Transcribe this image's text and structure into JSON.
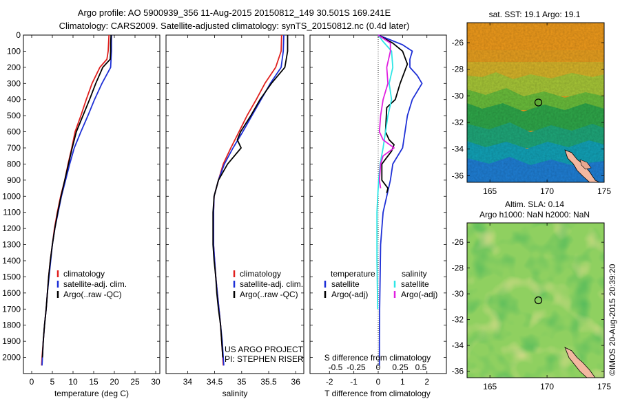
{
  "header": {
    "line1": "Argo profile: AO 5900939_356 11-Aug-2015 20150812_149 30.501S 169.241E",
    "line2": "Climatology: CARS2009. Satellite-adjusted climatology: synTS_20150812.nc (0.4d later)"
  },
  "colors": {
    "climatology": "#e0201e",
    "satellite": "#1d2fd6",
    "argo": "#000000",
    "satellite_s": "#2ee6e6",
    "argo_s": "#e020e0"
  },
  "chart_data": [
    {
      "id": "temperature",
      "type": "line",
      "xlabel": "temperature (deg C)",
      "ylabel": "",
      "xlim": [
        -2,
        31
      ],
      "ylim": [
        2100,
        0
      ],
      "xticks": [
        0,
        5,
        10,
        15,
        20,
        25,
        30
      ],
      "yticks": [
        0,
        100,
        200,
        300,
        400,
        500,
        600,
        700,
        800,
        900,
        1000,
        1100,
        1200,
        1300,
        1400,
        1500,
        1600,
        1700,
        1800,
        1900,
        2000
      ],
      "legend": {
        "placement": "lower-center",
        "entries": [
          "climatology",
          "satellite-adj. clim.",
          "Argo(..raw -QC)"
        ]
      },
      "series": [
        {
          "name": "climatology",
          "color_key": "climatology",
          "points": [
            [
              18.7,
              0
            ],
            [
              18.6,
              50
            ],
            [
              18.5,
              100
            ],
            [
              18.2,
              150
            ],
            [
              16.5,
              200
            ],
            [
              14.6,
              300
            ],
            [
              13.2,
              400
            ],
            [
              11.9,
              500
            ],
            [
              10.5,
              600
            ],
            [
              9.7,
              700
            ],
            [
              8.8,
              800
            ],
            [
              8.0,
              900
            ],
            [
              7.0,
              1000
            ],
            [
              6.2,
              1100
            ],
            [
              5.5,
              1200
            ],
            [
              5.0,
              1300
            ],
            [
              4.5,
              1400
            ],
            [
              4.1,
              1500
            ],
            [
              3.8,
              1600
            ],
            [
              3.5,
              1700
            ],
            [
              3.1,
              1800
            ],
            [
              2.8,
              1900
            ],
            [
              2.5,
              2000
            ],
            [
              2.4,
              2050
            ]
          ]
        },
        {
          "name": "satellite-adj. clim.",
          "color_key": "satellite",
          "points": [
            [
              19.3,
              0
            ],
            [
              19.3,
              50
            ],
            [
              19.3,
              100
            ],
            [
              19.2,
              150
            ],
            [
              19.1,
              200
            ],
            [
              17.0,
              300
            ],
            [
              15.2,
              400
            ],
            [
              13.6,
              500
            ],
            [
              11.9,
              600
            ],
            [
              10.3,
              700
            ],
            [
              9.2,
              800
            ],
            [
              8.2,
              900
            ],
            [
              7.2,
              1000
            ],
            [
              6.4,
              1100
            ],
            [
              5.6,
              1200
            ],
            [
              5.0,
              1300
            ],
            [
              4.6,
              1400
            ],
            [
              4.2,
              1500
            ],
            [
              3.8,
              1600
            ],
            [
              3.5,
              1700
            ],
            [
              3.1,
              1800
            ],
            [
              2.8,
              1900
            ],
            [
              2.6,
              2000
            ],
            [
              2.5,
              2050
            ]
          ]
        },
        {
          "name": "Argo(..raw -QC)",
          "color_key": "argo",
          "points": [
            [
              19.2,
              0
            ],
            [
              19.1,
              50
            ],
            [
              19.1,
              100
            ],
            [
              19.0,
              150
            ],
            [
              17.2,
              200
            ],
            [
              15.5,
              300
            ],
            [
              14.0,
              400
            ],
            [
              12.4,
              500
            ],
            [
              10.8,
              600
            ],
            [
              9.8,
              700
            ],
            [
              8.9,
              800
            ],
            [
              8.0,
              900
            ],
            [
              7.1,
              1000
            ],
            [
              6.3,
              1100
            ],
            [
              5.6,
              1200
            ],
            [
              5.0,
              1300
            ],
            [
              4.5,
              1400
            ],
            [
              4.1,
              1500
            ],
            [
              3.8,
              1600
            ],
            [
              3.5,
              1700
            ],
            [
              3.1,
              1800
            ],
            [
              2.8,
              1900
            ],
            [
              2.6,
              2000
            ]
          ]
        }
      ]
    },
    {
      "id": "salinity",
      "type": "line",
      "xlabel": "salinity",
      "ylabel": "",
      "xlim": [
        33.6,
        36.15
      ],
      "ylim": [
        2100,
        0
      ],
      "xticks": [
        34,
        34.5,
        35,
        35.5,
        36
      ],
      "legend": {
        "placement": "lower-center",
        "entries": [
          "climatology",
          "satellite-adj. clim.",
          "Argo(..raw -QC)"
        ]
      },
      "annotations": [
        "US ARGO PROJECT",
        "PI: STEPHEN RISER"
      ],
      "series": [
        {
          "name": "climatology",
          "color_key": "climatology",
          "points": [
            [
              35.74,
              0
            ],
            [
              35.73,
              100
            ],
            [
              35.63,
              200
            ],
            [
              35.43,
              300
            ],
            [
              35.27,
              400
            ],
            [
              35.1,
              500
            ],
            [
              34.95,
              600
            ],
            [
              34.8,
              700
            ],
            [
              34.66,
              800
            ],
            [
              34.57,
              900
            ],
            [
              34.49,
              1000
            ],
            [
              34.48,
              1100
            ],
            [
              34.48,
              1200
            ],
            [
              34.48,
              1300
            ],
            [
              34.5,
              1400
            ],
            [
              34.52,
              1500
            ],
            [
              34.55,
              1600
            ],
            [
              34.58,
              1700
            ],
            [
              34.61,
              1800
            ],
            [
              34.63,
              1900
            ],
            [
              34.65,
              2000
            ],
            [
              34.66,
              2050
            ]
          ]
        },
        {
          "name": "satellite-adj. clim.",
          "color_key": "satellite",
          "points": [
            [
              35.78,
              0
            ],
            [
              35.77,
              100
            ],
            [
              35.73,
              200
            ],
            [
              35.53,
              300
            ],
            [
              35.36,
              400
            ],
            [
              35.19,
              500
            ],
            [
              35.02,
              600
            ],
            [
              34.84,
              700
            ],
            [
              34.68,
              800
            ],
            [
              34.57,
              900
            ],
            [
              34.49,
              1000
            ],
            [
              34.48,
              1100
            ],
            [
              34.48,
              1200
            ],
            [
              34.48,
              1300
            ],
            [
              34.5,
              1400
            ],
            [
              34.52,
              1500
            ],
            [
              34.55,
              1600
            ],
            [
              34.58,
              1700
            ],
            [
              34.61,
              1800
            ],
            [
              34.64,
              1900
            ],
            [
              34.66,
              2000
            ],
            [
              34.67,
              2050
            ]
          ]
        },
        {
          "name": "Argo(..raw -QC)",
          "color_key": "argo",
          "points": [
            [
              35.85,
              0
            ],
            [
              35.85,
              100
            ],
            [
              35.8,
              200
            ],
            [
              35.55,
              300
            ],
            [
              35.34,
              400
            ],
            [
              35.17,
              500
            ],
            [
              34.98,
              600
            ],
            [
              34.92,
              650
            ],
            [
              34.99,
              700
            ],
            [
              34.74,
              800
            ],
            [
              34.57,
              900
            ],
            [
              34.49,
              1000
            ],
            [
              34.47,
              1100
            ],
            [
              34.47,
              1200
            ],
            [
              34.47,
              1300
            ],
            [
              34.49,
              1400
            ],
            [
              34.52,
              1500
            ],
            [
              34.54,
              1600
            ],
            [
              34.57,
              1700
            ],
            [
              34.61,
              1800
            ],
            [
              34.63,
              1900
            ],
            [
              34.65,
              2000
            ]
          ]
        }
      ]
    },
    {
      "id": "difference",
      "type": "line",
      "xlabel": "T difference from climatology",
      "xlabel_top": "S difference from climatology",
      "xlim": [
        -2.8,
        2.8
      ],
      "ylim": [
        2100,
        0
      ],
      "xticks": [
        -2,
        -1,
        0,
        1,
        2
      ],
      "xticks_s": [
        "-0.5",
        "-0.25",
        "0",
        "0.25",
        "0.5"
      ],
      "legend": {
        "placement": "lower-center",
        "temperature_title": "temperature",
        "salinity_title": "salinity",
        "entries": [
          "satellite",
          "Argo(-adj)",
          "satellite",
          "Argo(-adj)"
        ]
      },
      "series": [
        {
          "name": "satellite",
          "group": "temperature",
          "color_key": "satellite",
          "points": [
            [
              0.0,
              0
            ],
            [
              0.5,
              30
            ],
            [
              1.0,
              60
            ],
            [
              1.4,
              100
            ],
            [
              1.3,
              150
            ],
            [
              1.3,
              200
            ],
            [
              1.6,
              250
            ],
            [
              1.8,
              300
            ],
            [
              1.4,
              400
            ],
            [
              1.2,
              500
            ],
            [
              1.1,
              600
            ],
            [
              1.0,
              700
            ],
            [
              0.6,
              800
            ],
            [
              0.5,
              900
            ],
            [
              0.35,
              1000
            ],
            [
              0.2,
              1100
            ],
            [
              0.15,
              1200
            ],
            [
              0.1,
              1300
            ],
            [
              0.08,
              1500
            ],
            [
              0.06,
              1700
            ],
            [
              0.05,
              1900
            ],
            [
              0.05,
              2000
            ],
            [
              0.05,
              2050
            ]
          ]
        },
        {
          "name": "Argo(-adj)",
          "group": "temperature",
          "color_key": "argo",
          "points": [
            [
              0.0,
              0
            ],
            [
              0.6,
              50
            ],
            [
              1.0,
              100
            ],
            [
              1.2,
              180
            ],
            [
              0.9,
              300
            ],
            [
              0.7,
              400
            ],
            [
              0.35,
              450
            ],
            [
              0.3,
              600
            ],
            [
              0.45,
              650
            ],
            [
              0.65,
              680
            ],
            [
              0.55,
              720
            ],
            [
              0.15,
              800
            ],
            [
              0.15,
              900
            ],
            [
              0.4,
              950
            ],
            [
              0.35,
              980
            ]
          ]
        },
        {
          "name": "satellite",
          "group": "salinity",
          "color_key": "satellite_s",
          "points": [
            [
              0.0,
              0
            ],
            [
              0.2,
              40
            ],
            [
              0.55,
              100
            ],
            [
              0.6,
              200
            ],
            [
              0.45,
              300
            ],
            [
              0.55,
              400
            ],
            [
              0.4,
              500
            ],
            [
              0.3,
              600
            ],
            [
              0.2,
              700
            ],
            [
              0.08,
              800
            ],
            [
              0.02,
              900
            ],
            [
              -0.02,
              1000
            ],
            [
              -0.05,
              1100
            ],
            [
              -0.05,
              1200
            ],
            [
              -0.05,
              1400
            ],
            [
              -0.03,
              1600
            ],
            [
              -0.02,
              1700
            ]
          ]
        },
        {
          "name": "Argo(-adj)",
          "group": "salinity",
          "color_key": "argo_s",
          "points": [
            [
              0.0,
              0
            ],
            [
              0.5,
              50
            ],
            [
              0.5,
              100
            ],
            [
              0.35,
              200
            ],
            [
              0.4,
              300
            ],
            [
              0.2,
              400
            ],
            [
              0.1,
              500
            ],
            [
              0.05,
              600
            ],
            [
              0.2,
              650
            ],
            [
              0.65,
              700
            ],
            [
              0.2,
              750
            ],
            [
              0.1,
              800
            ],
            [
              0.05,
              900
            ],
            [
              0.1,
              950
            ]
          ]
        }
      ]
    },
    {
      "id": "sst_map",
      "type": "heatmap",
      "title": "sat. SST: 19.1  Argo: 19.1",
      "xlim": [
        163,
        175
      ],
      "ylim": [
        -36.5,
        -24.5
      ],
      "xticks": [
        165,
        170,
        175
      ],
      "yticks": [
        -26,
        -28,
        -30,
        -32,
        -34,
        -36
      ],
      "argo_position": [
        169.241,
        -30.501
      ]
    },
    {
      "id": "sla_map",
      "type": "heatmap",
      "title": "Altim. SLA: 0.14",
      "subtitle": "Argo h1000: NaN h2000: NaN",
      "xlim": [
        163,
        175
      ],
      "ylim": [
        -36.5,
        -24.5
      ],
      "xticks": [
        165,
        170,
        175
      ],
      "yticks": [
        -26,
        -28,
        -30,
        -32,
        -34,
        -36
      ],
      "argo_position": [
        169.241,
        -30.501
      ]
    }
  ],
  "footer": {
    "stamp": "©IMOS 20-Aug-2015 20:39:20"
  }
}
